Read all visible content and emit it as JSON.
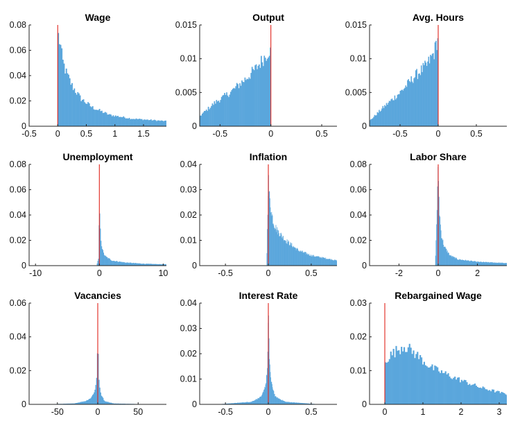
{
  "chart_data": [
    {
      "type": "histogram",
      "title": "Wage",
      "xlim": [
        -0.5,
        1.9
      ],
      "ylim": [
        0,
        0.08
      ],
      "xticks": [
        -0.5,
        0,
        0.5,
        1,
        1.5
      ],
      "xtick_labels": [
        "-0.5",
        "0",
        "0.5",
        "1",
        "1.5"
      ],
      "yticks": [
        0,
        0.02,
        0.04,
        0.06,
        0.08
      ],
      "ytick_labels": [
        "0",
        "0.02",
        "0.04",
        "0.06",
        "0.08"
      ],
      "marker_x": 0,
      "bins": {
        "start": 0,
        "end": 1.9,
        "width": 0.02,
        "profile": [
          [
            0,
            0.073
          ],
          [
            0.04,
            0.066
          ],
          [
            0.08,
            0.052
          ],
          [
            0.15,
            0.042
          ],
          [
            0.25,
            0.032
          ],
          [
            0.4,
            0.022
          ],
          [
            0.6,
            0.015
          ],
          [
            0.9,
            0.009
          ],
          [
            1.3,
            0.006
          ],
          [
            1.9,
            0.004
          ]
        ]
      }
    },
    {
      "type": "histogram",
      "title": "Output",
      "xlim": [
        -0.7,
        0.65
      ],
      "ylim": [
        0,
        0.015
      ],
      "xticks": [
        -0.5,
        0,
        0.5
      ],
      "xtick_labels": [
        "-0.5",
        "0",
        "0.5"
      ],
      "yticks": [
        0,
        0.005,
        0.01,
        0.015
      ],
      "ytick_labels": [
        "0",
        "0.005",
        "0.01",
        "0.015"
      ],
      "marker_x": 0,
      "bins": {
        "start": -0.7,
        "end": 0,
        "width": 0.01,
        "profile": [
          [
            -0.7,
            0.0015
          ],
          [
            -0.55,
            0.0035
          ],
          [
            -0.4,
            0.005
          ],
          [
            -0.25,
            0.007
          ],
          [
            -0.15,
            0.0085
          ],
          [
            -0.05,
            0.0105
          ],
          [
            -0.01,
            0.0115
          ],
          [
            0,
            0.0105
          ]
        ]
      }
    },
    {
      "type": "histogram",
      "title": "Avg. Hours",
      "xlim": [
        -0.9,
        0.9
      ],
      "ylim": [
        0,
        0.015
      ],
      "xticks": [
        -0.5,
        0,
        0.5
      ],
      "xtick_labels": [
        "-0.5",
        "0",
        "0.5"
      ],
      "yticks": [
        0,
        0.005,
        0.01,
        0.015
      ],
      "ytick_labels": [
        "0",
        "0.005",
        "0.01",
        "0.015"
      ],
      "marker_x": 0,
      "bins": {
        "start": -0.9,
        "end": 0,
        "width": 0.012,
        "profile": [
          [
            -0.9,
            0.0008
          ],
          [
            -0.7,
            0.003
          ],
          [
            -0.5,
            0.005
          ],
          [
            -0.3,
            0.0075
          ],
          [
            -0.15,
            0.009
          ],
          [
            -0.05,
            0.011
          ],
          [
            -0.01,
            0.013
          ],
          [
            0,
            0.012
          ]
        ]
      }
    },
    {
      "type": "histogram",
      "title": "Unemployment",
      "xlim": [
        -11,
        10.5
      ],
      "ylim": [
        0,
        0.08
      ],
      "xticks": [
        -10,
        0,
        10
      ],
      "xtick_labels": [
        "-10",
        "0",
        "10"
      ],
      "yticks": [
        0,
        0.02,
        0.04,
        0.06,
        0.08
      ],
      "ytick_labels": [
        "0",
        "0.02",
        "0.04",
        "0.06",
        "0.08"
      ],
      "marker_x": 0,
      "bins": {
        "start": -0.4,
        "end": 10.5,
        "width": 0.1,
        "profile": [
          [
            -0.4,
            0.001
          ],
          [
            -0.1,
            0.006
          ],
          [
            0,
            0.052
          ],
          [
            0.1,
            0.03
          ],
          [
            0.3,
            0.018
          ],
          [
            0.6,
            0.01
          ],
          [
            1,
            0.007
          ],
          [
            2,
            0.004
          ],
          [
            4,
            0.0025
          ],
          [
            7,
            0.0015
          ],
          [
            10.5,
            0.001
          ]
        ]
      }
    },
    {
      "type": "histogram",
      "title": "Inflation",
      "xlim": [
        -0.8,
        0.8
      ],
      "ylim": [
        0,
        0.04
      ],
      "xticks": [
        -0.5,
        0,
        0.5
      ],
      "xtick_labels": [
        "-0.5",
        "0",
        "0.5"
      ],
      "yticks": [
        0,
        0.01,
        0.02,
        0.03,
        0.04
      ],
      "ytick_labels": [
        "0",
        "0.01",
        "0.02",
        "0.03",
        "0.04"
      ],
      "marker_x": 0,
      "bins": {
        "start": -0.02,
        "end": 0.8,
        "width": 0.005,
        "profile": [
          [
            -0.02,
            0.001
          ],
          [
            0,
            0.035
          ],
          [
            0.01,
            0.028
          ],
          [
            0.03,
            0.022
          ],
          [
            0.06,
            0.017
          ],
          [
            0.1,
            0.014
          ],
          [
            0.2,
            0.01
          ],
          [
            0.35,
            0.006
          ],
          [
            0.5,
            0.004
          ],
          [
            0.8,
            0.002
          ]
        ]
      }
    },
    {
      "type": "histogram",
      "title": "Labor Share",
      "xlim": [
        -3.5,
        3.5
      ],
      "ylim": [
        0,
        0.08
      ],
      "xticks": [
        -2,
        0,
        2
      ],
      "xtick_labels": [
        "-2",
        "0",
        "2"
      ],
      "yticks": [
        0,
        0.02,
        0.04,
        0.06,
        0.08
      ],
      "ytick_labels": [
        "0",
        "0.02",
        "0.04",
        "0.06",
        "0.08"
      ],
      "marker_x": 0,
      "bins": {
        "start": -0.15,
        "end": 3.5,
        "width": 0.025,
        "profile": [
          [
            -0.15,
            0.001
          ],
          [
            0,
            0.078
          ],
          [
            0.05,
            0.045
          ],
          [
            0.15,
            0.025
          ],
          [
            0.3,
            0.015
          ],
          [
            0.6,
            0.008
          ],
          [
            1,
            0.005
          ],
          [
            2,
            0.003
          ],
          [
            3.5,
            0.002
          ]
        ]
      }
    },
    {
      "type": "histogram",
      "title": "Vacancies",
      "xlim": [
        -85,
        85
      ],
      "ylim": [
        0,
        0.06
      ],
      "xticks": [
        -50,
        0,
        50
      ],
      "xtick_labels": [
        "-50",
        "0",
        "50"
      ],
      "yticks": [
        0,
        0.02,
        0.04,
        0.06
      ],
      "ytick_labels": [
        "0",
        "0.02",
        "0.04",
        "0.06"
      ],
      "marker_x": 0,
      "bins": {
        "start": -70,
        "end": 70,
        "width": 1,
        "profile": [
          [
            -70,
            0
          ],
          [
            -30,
            0.0005
          ],
          [
            -15,
            0.002
          ],
          [
            -8,
            0.004
          ],
          [
            -3,
            0.009
          ],
          [
            -1,
            0.018
          ],
          [
            0,
            0.045
          ],
          [
            1,
            0.018
          ],
          [
            3,
            0.007
          ],
          [
            8,
            0.002
          ],
          [
            20,
            0.0005
          ],
          [
            70,
            0
          ]
        ]
      }
    },
    {
      "type": "histogram",
      "title": "Interest Rate",
      "xlim": [
        -0.8,
        0.8
      ],
      "ylim": [
        0,
        0.04
      ],
      "xticks": [
        -0.5,
        0,
        0.5
      ],
      "xtick_labels": [
        "-0.5",
        "0",
        "0.5"
      ],
      "yticks": [
        0,
        0.01,
        0.02,
        0.03,
        0.04
      ],
      "ytick_labels": [
        "0",
        "0.01",
        "0.02",
        "0.03",
        "0.04"
      ],
      "marker_x": 0,
      "bins": {
        "start": -0.6,
        "end": 0.6,
        "width": 0.005,
        "profile": [
          [
            -0.6,
            0
          ],
          [
            -0.2,
            0.001
          ],
          [
            -0.08,
            0.003
          ],
          [
            -0.03,
            0.008
          ],
          [
            -0.01,
            0.015
          ],
          [
            0,
            0.036
          ],
          [
            0.01,
            0.02
          ],
          [
            0.03,
            0.009
          ],
          [
            0.08,
            0.003
          ],
          [
            0.2,
            0.001
          ],
          [
            0.6,
            0
          ]
        ]
      }
    },
    {
      "type": "histogram",
      "title": "Rebargained Wage",
      "xlim": [
        -0.4,
        3.2
      ],
      "ylim": [
        0,
        0.03
      ],
      "xticks": [
        0,
        1,
        2,
        3
      ],
      "xtick_labels": [
        "0",
        "1",
        "2",
        "3"
      ],
      "yticks": [
        0,
        0.01,
        0.02,
        0.03
      ],
      "ytick_labels": [
        "0",
        "0.01",
        "0.02",
        "0.03"
      ],
      "marker_x": 0,
      "bins": {
        "start": 0,
        "end": 3.2,
        "width": 0.035,
        "profile": [
          [
            0,
            0.013
          ],
          [
            0.2,
            0.015
          ],
          [
            0.5,
            0.0175
          ],
          [
            0.8,
            0.015
          ],
          [
            1.2,
            0.011
          ],
          [
            1.8,
            0.008
          ],
          [
            2.5,
            0.005
          ],
          [
            3.2,
            0.003
          ]
        ]
      }
    }
  ]
}
